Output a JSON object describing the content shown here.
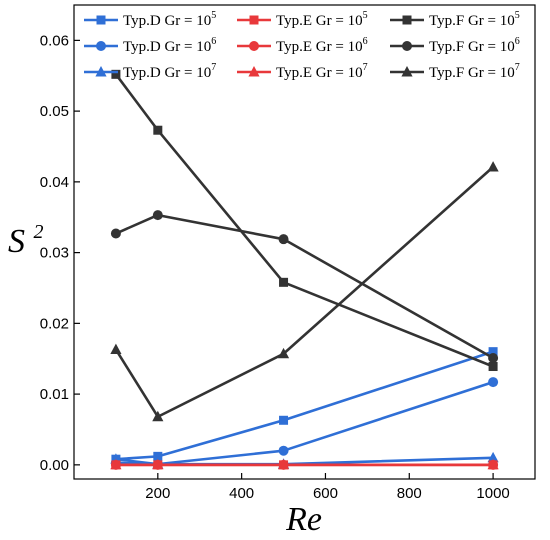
{
  "chart_data": {
    "type": "line",
    "xlabel": "Re",
    "ylabel_base": "S",
    "ylabel_sup": "2",
    "xlim": [
      0,
      1100
    ],
    "ylim": [
      -0.002,
      0.065
    ],
    "x_ticks": [
      200,
      400,
      600,
      800,
      1000
    ],
    "x_tick_labels": [
      "200",
      "400",
      "600",
      "800",
      "1000"
    ],
    "y_ticks": [
      0.0,
      0.01,
      0.02,
      0.03,
      0.04,
      0.05,
      0.06
    ],
    "y_tick_labels": [
      "0.00",
      "0.01",
      "0.02",
      "0.03",
      "0.04",
      "0.05",
      "0.06"
    ],
    "grid": false,
    "legend_position": "top",
    "x": [
      100,
      200,
      500,
      1000
    ],
    "series": [
      {
        "name": "Typ.D Gr = 10",
        "sup": "5",
        "color": "#2f6fd6",
        "marker": "square",
        "values": [
          0.0008,
          0.0012,
          0.0063,
          0.016
        ]
      },
      {
        "name": "Typ.D Gr = 10",
        "sup": "6",
        "color": "#2f6fd6",
        "marker": "circle",
        "values": [
          0.0003,
          0.0001,
          0.002,
          0.0117
        ]
      },
      {
        "name": "Typ.D Gr = 10",
        "sup": "7",
        "color": "#2f6fd6",
        "marker": "triangle",
        "values": [
          0.0008,
          0.0001,
          0.0001,
          0.001
        ]
      },
      {
        "name": "Typ.E Gr = 10",
        "sup": "5",
        "color": "#e8383b",
        "marker": "square",
        "values": [
          0.0,
          0.0,
          0.0,
          0.0
        ]
      },
      {
        "name": "Typ.E Gr = 10",
        "sup": "6",
        "color": "#e8383b",
        "marker": "circle",
        "values": [
          0.0,
          0.0,
          0.0,
          0.0
        ]
      },
      {
        "name": "Typ.E Gr = 10",
        "sup": "7",
        "color": "#e8383b",
        "marker": "triangle",
        "values": [
          0.0,
          0.0,
          0.0,
          0.0
        ]
      },
      {
        "name": "Typ.F Gr = 10",
        "sup": "5",
        "color": "#333333",
        "marker": "square",
        "values": [
          0.0552,
          0.0473,
          0.0258,
          0.0139
        ]
      },
      {
        "name": "Typ.F Gr = 10",
        "sup": "6",
        "color": "#333333",
        "marker": "circle",
        "values": [
          0.0327,
          0.0353,
          0.0319,
          0.0151
        ]
      },
      {
        "name": "Typ.F Gr = 10",
        "sup": "7",
        "color": "#333333",
        "marker": "triangle",
        "values": [
          0.0163,
          0.0068,
          0.0157,
          0.0421
        ]
      }
    ]
  }
}
